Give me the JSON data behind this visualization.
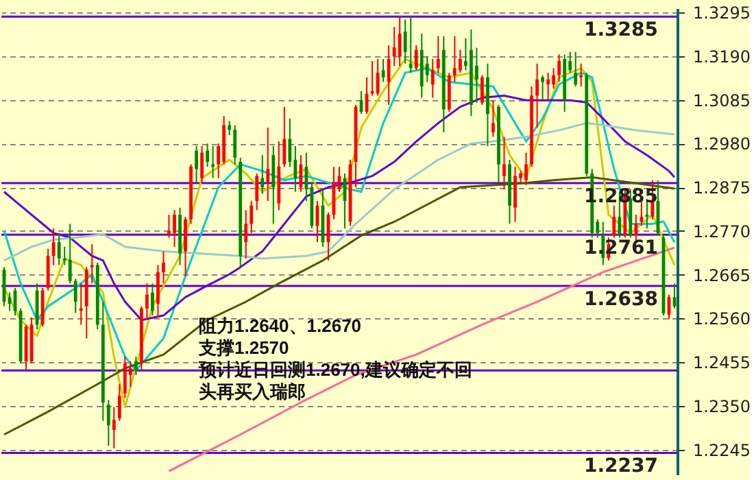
{
  "chart_data": {
    "type": "candlestick",
    "categories": [
      null,
      null,
      null,
      null,
      null,
      null,
      null,
      null,
      null,
      null,
      null,
      null,
      null,
      null,
      null,
      null,
      null,
      null,
      null,
      null,
      null,
      null,
      null,
      null,
      null,
      null,
      null,
      null,
      null,
      null,
      null,
      null,
      null,
      null,
      null,
      null,
      null,
      null,
      null,
      null,
      null,
      null,
      null,
      null,
      null,
      null,
      null,
      null,
      null,
      null,
      null,
      null,
      null,
      null,
      null,
      null,
      null,
      null,
      null,
      null,
      null,
      null,
      null,
      null,
      null,
      null,
      null,
      null,
      null,
      null,
      null,
      null,
      null,
      null,
      null,
      null,
      null,
      null,
      null,
      null,
      null,
      null,
      null,
      null,
      null,
      null,
      null,
      null,
      null,
      null,
      null,
      null,
      null,
      null,
      null,
      null,
      null,
      null,
      null,
      null,
      null,
      null,
      null,
      null,
      null,
      null,
      null,
      null,
      null,
      null,
      null,
      null,
      null,
      null,
      null,
      null,
      null,
      null,
      null,
      null,
      null,
      null,
      null
    ],
    "ohlc": [
      [
        1.2677,
        1.2683,
        1.2589,
        1.26
      ],
      [
        1.2611,
        1.2622,
        1.2578,
        1.2595
      ],
      [
        1.2627,
        1.2633,
        1.2567,
        1.2578
      ],
      [
        1.2578,
        1.2584,
        1.2452,
        1.2457
      ],
      [
        1.2457,
        1.2545,
        1.2435,
        1.254
      ],
      [
        1.2457,
        1.2562,
        1.2452,
        1.2545
      ],
      [
        1.2627,
        1.2644,
        1.2534,
        1.2545
      ],
      [
        1.2545,
        1.2633,
        1.254,
        1.2627
      ],
      [
        1.2633,
        1.2727,
        1.2627,
        1.271
      ],
      [
        1.271,
        1.2776,
        1.2688,
        1.2743
      ],
      [
        1.2743,
        1.2765,
        1.2688,
        1.2704
      ],
      [
        1.2704,
        1.2732,
        1.2688,
        1.2699
      ],
      [
        1.2701,
        1.2787,
        1.2644,
        1.265
      ],
      [
        1.265,
        1.2655,
        1.2573,
        1.26
      ],
      [
        1.2578,
        1.2644,
        1.2545,
        1.2584
      ],
      [
        1.2589,
        1.2683,
        1.2512,
        1.2677
      ],
      [
        1.2683,
        1.2738,
        1.2644,
        1.2688
      ],
      [
        1.2688,
        1.2694,
        1.2534,
        1.2545
      ],
      [
        1.2545,
        1.26,
        1.2314,
        1.2358
      ],
      [
        1.2353,
        1.2364,
        1.2254,
        1.2303
      ],
      [
        1.2292,
        1.2347,
        1.2248,
        1.2316
      ],
      [
        1.232,
        1.2402,
        1.2314,
        1.2374
      ],
      [
        1.238,
        1.2468,
        1.2369,
        1.2452
      ],
      [
        1.2424,
        1.2457,
        1.2396,
        1.244
      ],
      [
        1.2457,
        1.2468,
        1.2424,
        1.2435
      ],
      [
        1.2452,
        1.2589,
        1.2435,
        1.2584
      ],
      [
        1.2584,
        1.2644,
        1.2556,
        1.2617
      ],
      [
        1.2622,
        1.2644,
        1.2567,
        1.2578
      ],
      [
        1.2595,
        1.2688,
        1.2562,
        1.2671
      ],
      [
        1.2671,
        1.2721,
        1.2644,
        1.2694
      ],
      [
        1.2759,
        1.2809,
        1.2754,
        1.277
      ],
      [
        1.2765,
        1.282,
        1.2732,
        1.2809
      ],
      [
        1.2809,
        1.2826,
        1.2688,
        1.2716
      ],
      [
        1.2721,
        1.2804,
        1.2661,
        1.2798
      ],
      [
        1.2798,
        1.293,
        1.2787,
        1.2925
      ],
      [
        1.2963,
        1.2974,
        1.2886,
        1.2919
      ],
      [
        1.2897,
        1.2974,
        1.2886,
        1.2958
      ],
      [
        1.2963,
        1.298,
        1.2924,
        1.2936
      ],
      [
        1.293,
        1.2974,
        1.2897,
        1.2924
      ],
      [
        1.293,
        1.298,
        1.2897,
        1.2974
      ],
      [
        1.2936,
        1.3046,
        1.293,
        1.3024
      ],
      [
        1.3024,
        1.3034,
        1.3,
        1.3013
      ],
      [
        1.3013,
        1.3024,
        1.293,
        1.2946
      ],
      [
        1.2936,
        1.2946,
        1.2683,
        1.271
      ],
      [
        1.2743,
        1.282,
        1.2704,
        1.2787
      ],
      [
        1.2787,
        1.2842,
        1.2765,
        1.2831
      ],
      [
        1.2842,
        1.2908,
        1.282,
        1.2902
      ],
      [
        1.2897,
        1.2952,
        1.2859,
        1.2875
      ],
      [
        1.2886,
        1.3018,
        1.2842,
        1.2919
      ],
      [
        1.2952,
        1.2974,
        1.2787,
        1.2875
      ],
      [
        1.2836,
        1.2985,
        1.282,
        1.2925
      ],
      [
        1.293,
        1.3068,
        1.2924,
        1.2991
      ],
      [
        1.2991,
        1.304,
        1.2924,
        1.2936
      ],
      [
        1.2941,
        1.2974,
        1.2864,
        1.2897
      ],
      [
        1.2875,
        1.2952,
        1.2864,
        1.293
      ],
      [
        1.2924,
        1.2958,
        1.2842,
        1.287
      ],
      [
        1.2875,
        1.2886,
        1.2776,
        1.2782
      ],
      [
        1.2782,
        1.2842,
        1.2743,
        1.2831
      ],
      [
        1.2831,
        1.287,
        1.2732,
        1.2743
      ],
      [
        1.2743,
        1.2814,
        1.2699,
        1.2809
      ],
      [
        1.2809,
        1.2924,
        1.2798,
        1.2886
      ],
      [
        1.287,
        1.2924,
        1.2864,
        1.2902
      ],
      [
        1.2897,
        1.2908,
        1.2776,
        1.2842
      ],
      [
        1.2792,
        1.2941,
        1.2782,
        1.293
      ],
      [
        1.2936,
        1.3073,
        1.2875,
        1.3068
      ],
      [
        1.3084,
        1.3106,
        1.3051,
        1.3056
      ],
      [
        1.3056,
        1.3139,
        1.3051,
        1.31
      ],
      [
        1.31,
        1.3178,
        1.3095,
        1.3106
      ],
      [
        1.31,
        1.3183,
        1.3095,
        1.315
      ],
      [
        1.3156,
        1.3183,
        1.3128,
        1.3139
      ],
      [
        1.3128,
        1.3216,
        1.3073,
        1.3183
      ],
      [
        1.3189,
        1.326,
        1.3166,
        1.3211
      ],
      [
        1.3189,
        1.3285,
        1.3166,
        1.3244
      ],
      [
        1.3249,
        1.3278,
        1.3172,
        1.32
      ],
      [
        1.3172,
        1.3282,
        1.315,
        1.3161
      ],
      [
        1.3161,
        1.3216,
        1.3156,
        1.3205
      ],
      [
        1.3205,
        1.3244,
        1.309,
        1.3117
      ],
      [
        1.3172,
        1.3189,
        1.3128,
        1.3144
      ],
      [
        1.3122,
        1.3183,
        1.309,
        1.3156
      ],
      [
        1.3161,
        1.3238,
        1.315,
        1.3183
      ],
      [
        1.3205,
        1.3238,
        1.3007,
        1.3062
      ],
      [
        1.3062,
        1.315,
        1.3056,
        1.3144
      ],
      [
        1.3144,
        1.3238,
        1.3128,
        1.3161
      ],
      [
        1.3156,
        1.3205,
        1.315,
        1.3183
      ],
      [
        1.3178,
        1.3233,
        1.3156,
        1.3167
      ],
      [
        1.3205,
        1.3254,
        1.3046,
        1.3073
      ],
      [
        1.3167,
        1.321,
        1.3078,
        1.3134
      ],
      [
        1.3078,
        1.3144,
        1.3073,
        1.3139
      ],
      [
        1.3139,
        1.3172,
        1.2974,
        1.3051
      ],
      [
        1.3007,
        1.3084,
        1.2996,
        1.3029
      ],
      [
        1.3068,
        1.3073,
        1.2886,
        1.293
      ],
      [
        1.2902,
        1.2996,
        1.287,
        1.293
      ],
      [
        1.293,
        1.2941,
        1.2787,
        1.2831
      ],
      [
        1.2826,
        1.2924,
        1.2792,
        1.2902
      ],
      [
        1.2897,
        1.2914,
        1.2886,
        1.2908
      ],
      [
        1.2892,
        1.2958,
        1.288,
        1.293
      ],
      [
        1.293,
        1.3117,
        1.2924,
        1.3095
      ],
      [
        1.3095,
        1.3172,
        1.3018,
        1.3134
      ],
      [
        1.3139,
        1.3144,
        1.3084,
        1.3128
      ],
      [
        1.3122,
        1.315,
        1.3084,
        1.3134
      ],
      [
        1.3122,
        1.3161,
        1.3112,
        1.3144
      ],
      [
        1.3144,
        1.3194,
        1.3128,
        1.3178
      ],
      [
        1.3183,
        1.3194,
        1.3056,
        1.3084
      ],
      [
        1.3178,
        1.32,
        1.315,
        1.3156
      ],
      [
        1.315,
        1.32,
        1.3117,
        1.3122
      ],
      [
        1.3139,
        1.3172,
        1.3117,
        1.3144
      ],
      [
        1.3144,
        1.315,
        1.2902,
        1.2908
      ],
      [
        1.2908,
        1.2919,
        1.2754,
        1.2765
      ],
      [
        1.2792,
        1.2798,
        1.2754,
        1.2765
      ],
      [
        1.276,
        1.2792,
        1.2688,
        1.2705
      ],
      [
        1.2705,
        1.2754,
        1.2699,
        1.2738
      ],
      [
        1.276,
        1.2831,
        1.2754,
        1.2804
      ],
      [
        1.2804,
        1.2864,
        1.2754,
        1.276
      ],
      [
        1.276,
        1.287,
        1.2754,
        1.2859
      ],
      [
        1.2848,
        1.287,
        1.2754,
        1.276
      ],
      [
        1.276,
        1.2809,
        1.2743,
        1.2787
      ],
      [
        1.2792,
        1.2848,
        1.2782,
        1.2804
      ],
      [
        1.2809,
        1.2842,
        1.2776,
        1.2804
      ],
      [
        1.2804,
        1.2891,
        1.2798,
        1.2842
      ],
      [
        1.2842,
        1.2891,
        1.276,
        1.2765
      ],
      [
        1.2754,
        1.276,
        1.2567,
        1.2572
      ],
      [
        1.2569,
        1.2617,
        1.2558,
        1.2611
      ],
      [
        1.2611,
        1.2644,
        1.2584,
        1.2589
      ]
    ],
    "series": [
      {
        "type": "line",
        "color": "#cccc00",
        "values": [
          1.2633,
          null,
          null,
          1.2556,
          null,
          null,
          1.2518,
          null,
          1.26,
          null,
          null,
          1.2704,
          null,
          null,
          1.2688,
          null,
          null,
          null,
          1.2622,
          null,
          1.2468,
          null,
          1.2347,
          null,
          null,
          null,
          null,
          1.2589,
          null,
          null,
          null,
          null,
          1.271,
          null,
          null,
          null,
          1.2897,
          null,
          null,
          null,
          null,
          1.2941,
          null,
          null,
          1.2908,
          null,
          null,
          1.2864,
          null,
          null,
          null,
          1.2897,
          null,
          null,
          null,
          1.2919,
          null,
          null,
          null,
          1.2831,
          null,
          null,
          1.2864,
          null,
          null,
          1.3018,
          null,
          null,
          null,
          1.3106,
          null,
          null,
          null,
          1.3183,
          null,
          null,
          null,
          1.3161,
          null,
          null,
          null,
          1.3139,
          null,
          null,
          null,
          1.315,
          null,
          null,
          null,
          1.3062,
          null,
          null,
          1.2952,
          null,
          null,
          1.2897,
          null,
          null,
          1.3029,
          null,
          null,
          1.3139,
          null,
          null,
          null,
          1.3161,
          null,
          1.3128,
          null,
          null,
          1.2809,
          null,
          null,
          null,
          1.2765,
          null,
          null,
          null,
          1.2809,
          null,
          null,
          null,
          1.2688
        ]
      },
      {
        "type": "line",
        "color": "#00cccc",
        "values": [
          1.2771,
          null,
          null,
          1.2644,
          null,
          null,
          1.2556,
          null,
          1.2589,
          null,
          null,
          null,
          null,
          1.2633,
          null,
          null,
          1.2666,
          null,
          1.26,
          null,
          null,
          null,
          1.2468,
          null,
          1.2435,
          null,
          null,
          null,
          null,
          1.2512,
          null,
          null,
          null,
          null,
          1.2699,
          null,
          null,
          null,
          null,
          1.2875,
          null,
          null,
          null,
          1.293,
          null,
          null,
          null,
          1.2914,
          null,
          null,
          null,
          1.2892,
          null,
          null,
          null,
          1.2902,
          null,
          null,
          null,
          1.2886,
          null,
          null,
          null,
          1.287,
          null,
          1.2864,
          null,
          null,
          null,
          1.3029,
          null,
          null,
          null,
          1.315,
          null,
          null,
          null,
          1.3161,
          null,
          null,
          null,
          1.3128,
          null,
          null,
          null,
          1.3122,
          null,
          null,
          null,
          1.3117,
          null,
          null,
          1.3051,
          null,
          null,
          1.2985,
          null,
          null,
          1.304,
          null,
          null,
          1.3122,
          null,
          null,
          null,
          1.315,
          null,
          1.3139,
          null,
          null,
          null,
          1.2919,
          null,
          null,
          1.2787,
          null,
          null,
          null,
          1.2787,
          null,
          1.2793,
          null,
          1.2743
        ]
      },
      {
        "type": "line",
        "color": "#6600cc",
        "values": [
          1.2864,
          null,
          null,
          1.2831,
          null,
          null,
          null,
          1.2787,
          null,
          1.2765,
          null,
          null,
          1.2754,
          null,
          null,
          null,
          1.271,
          null,
          1.2699,
          null,
          1.2644,
          null,
          1.26,
          null,
          null,
          1.2556,
          null,
          null,
          null,
          1.2567,
          null,
          null,
          null,
          1.2611,
          null,
          null,
          null,
          1.2639,
          null,
          null,
          null,
          1.2666,
          null,
          1.2683,
          null,
          null,
          null,
          1.2721,
          null,
          null,
          null,
          1.2787,
          null,
          null,
          null,
          1.2853,
          null,
          null,
          null,
          1.2875,
          null,
          null,
          null,
          1.2886,
          null,
          null,
          null,
          1.2902,
          null,
          null,
          null,
          1.2936,
          null,
          null,
          null,
          1.2985,
          null,
          null,
          null,
          1.3029,
          null,
          null,
          null,
          1.3068,
          null,
          null,
          null,
          1.309,
          null,
          null,
          null,
          1.3095,
          null,
          null,
          null,
          1.3084,
          null,
          null,
          null,
          1.3084,
          null,
          null,
          null,
          1.3084,
          null,
          null,
          1.3079,
          null,
          null,
          1.304,
          null,
          null,
          null,
          1.2985,
          null,
          null,
          null,
          1.2952,
          null,
          null,
          null,
          1.2914,
          1.2899
        ]
      },
      {
        "type": "line",
        "color": "#99cccc",
        "values": [
          1.2699,
          null,
          null,
          null,
          null,
          1.2732,
          null,
          null,
          null,
          1.2749,
          null,
          null,
          null,
          1.2754,
          null,
          null,
          null,
          null,
          1.2762,
          null,
          null,
          null,
          1.2732,
          null,
          null,
          null,
          null,
          null,
          null,
          1.2721,
          null,
          null,
          null,
          null,
          null,
          null,
          null,
          null,
          null,
          null,
          null,
          null,
          null,
          1.271,
          null,
          null,
          null,
          1.2704,
          null,
          null,
          null,
          null,
          null,
          null,
          null,
          1.271,
          null,
          null,
          null,
          1.2721,
          null,
          null,
          null,
          null,
          1.2787,
          null,
          null,
          null,
          null,
          null,
          null,
          1.287,
          null,
          null,
          null,
          null,
          null,
          null,
          null,
          1.2941,
          null,
          null,
          null,
          null,
          null,
          1.298,
          null,
          null,
          null,
          1.2985,
          null,
          null,
          null,
          null,
          null,
          1.2996,
          null,
          null,
          null,
          null,
          null,
          1.3012,
          null,
          null,
          null,
          null,
          1.3029,
          null,
          null,
          1.3024,
          null,
          null,
          null,
          null,
          null,
          1.3012,
          null,
          null,
          null,
          null,
          null,
          null,
          1.3002
        ]
      },
      {
        "type": "line",
        "color": "#4a5a00",
        "values": [
          1.2281,
          null,
          null,
          null,
          null,
          null,
          null,
          null,
          1.2336,
          null,
          null,
          null,
          null,
          null,
          null,
          null,
          null,
          1.2402,
          null,
          null,
          null,
          null,
          1.244,
          null,
          null,
          null,
          null,
          null,
          null,
          1.2473,
          null,
          null,
          null,
          null,
          null,
          null,
          null,
          1.2556,
          null,
          null,
          null,
          null,
          null,
          null,
          1.26,
          null,
          null,
          null,
          null,
          null,
          1.2644,
          null,
          null,
          null,
          null,
          null,
          null,
          null,
          1.2699,
          null,
          null,
          null,
          null,
          null,
          null,
          1.2759,
          null,
          null,
          null,
          null,
          null,
          1.2792,
          null,
          null,
          null,
          null,
          null,
          null,
          null,
          null,
          null,
          null,
          null,
          1.2875,
          null,
          null,
          null,
          null,
          null,
          null,
          null,
          null,
          null,
          null,
          1.2884,
          null,
          null,
          null,
          null,
          null,
          1.2892,
          null,
          null,
          null,
          null,
          null,
          null,
          1.2899,
          null,
          null,
          null,
          null,
          null,
          null,
          null,
          null,
          null,
          null,
          null,
          null,
          null,
          null,
          1.2872
        ]
      },
      {
        "type": "line",
        "color": "#ff6699",
        "values": [
          null,
          null,
          null,
          null,
          null,
          null,
          null,
          null,
          null,
          null,
          null,
          null,
          null,
          null,
          null,
          null,
          null,
          null,
          null,
          null,
          null,
          null,
          null,
          null,
          null,
          null,
          null,
          null,
          null,
          null,
          1.2193,
          null,
          null,
          null,
          null,
          null,
          null,
          null,
          null,
          null,
          null,
          null,
          null,
          1.2281,
          null,
          null,
          null,
          null,
          null,
          null,
          null,
          null,
          null,
          null,
          1.2358,
          null,
          null,
          null,
          null,
          null,
          null,
          null,
          null,
          null,
          1.2424,
          null,
          null,
          null,
          null,
          null,
          null,
          null,
          null,
          null,
          null,
          1.2473,
          null,
          null,
          null,
          null,
          null,
          null,
          null,
          null,
          null,
          null,
          null,
          1.2545,
          null,
          null,
          null,
          null,
          null,
          null,
          null,
          null,
          null,
          1.26,
          null,
          null,
          null,
          null,
          null,
          null,
          null,
          null,
          null,
          null,
          null,
          1.2671,
          null,
          null,
          null,
          null,
          null,
          null,
          null,
          null,
          null,
          null,
          null,
          null,
          1.273
        ]
      }
    ],
    "ylim": [
      1.2185,
      1.3305
    ],
    "yticks": [
      1.3295,
      {
        "value": 1.319,
        "label": "1.3190"
      },
      1.3085,
      {
        "value": 1.298,
        "label": "1.2980"
      },
      1.2875,
      {
        "value": 1.277,
        "label": "1.2770"
      },
      1.2665,
      {
        "value": 1.256,
        "label": "1.2560"
      },
      1.2455,
      {
        "value": 1.235,
        "label": "1.2350"
      },
      1.2245
    ],
    "tick_labels": "y",
    "grid": "y",
    "ref_lines": [
      {
        "axis": "y",
        "value": 1.3285,
        "label": "1.3285",
        "color": "#6600cc"
      },
      {
        "axis": "y",
        "value": 1.2885,
        "label": "1.2885",
        "color": "#6600cc"
      },
      {
        "axis": "y",
        "value": 1.2761,
        "label": "1.2761",
        "color": "#6600cc"
      },
      {
        "axis": "y",
        "value": 1.2638,
        "label": "1.2638",
        "color": "#6600cc"
      },
      {
        "axis": "y",
        "value": 1.2435,
        "label": null,
        "color": "#6600cc"
      },
      {
        "axis": "y",
        "value": 1.2237,
        "label": "1.2237",
        "color": "#6600cc"
      }
    ],
    "annotations": [
      "阻力1.2640、1.2670",
      "支撑1.2570",
      "预计近日回测1.2670,建议确定不回",
      "头再买入瑞郎"
    ]
  }
}
